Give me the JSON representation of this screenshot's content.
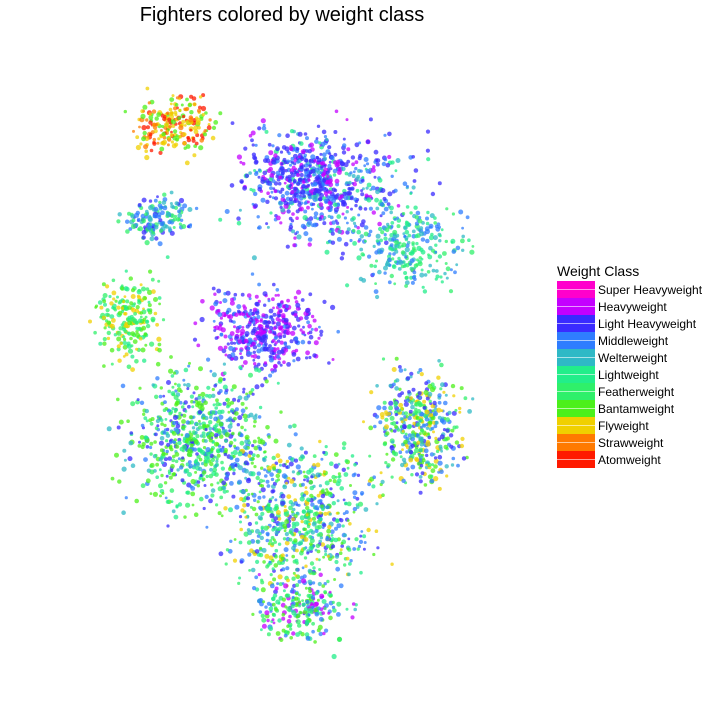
{
  "chart_data": {
    "type": "scatter",
    "title": "Fighters colored by weight class",
    "xlabel": "",
    "ylabel": "",
    "grid": false,
    "legend": {
      "title": "Weight Class",
      "placement": "right",
      "entries": [
        {
          "name": "Super Heavyweight",
          "color": "#ff00cc"
        },
        {
          "name": "Heavyweight",
          "color": "#c400ff"
        },
        {
          "name": "Light Heavyweight",
          "color": "#3a2bff"
        },
        {
          "name": "Middleweight",
          "color": "#2f7dff"
        },
        {
          "name": "Welterweight",
          "color": "#2fb9c6"
        },
        {
          "name": "Lightweight",
          "color": "#22ee8a"
        },
        {
          "name": "Featherweight",
          "color": "#2ff06a"
        },
        {
          "name": "Bantamweight",
          "color": "#4cf01a"
        },
        {
          "name": "Flyweight",
          "color": "#f0d000"
        },
        {
          "name": "Strawweight",
          "color": "#ff7a00"
        },
        {
          "name": "Atomweight",
          "color": "#ff1a00"
        }
      ]
    }
  }
}
